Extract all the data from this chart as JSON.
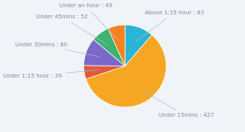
{
  "labels": [
    "Above 1:15 hour",
    "Under 15mins",
    "Under 1:15 hour",
    "Under 30mins",
    "Under 45mins",
    "Under an hour"
  ],
  "values": [
    83,
    427,
    39,
    80,
    52,
    49
  ],
  "colors": [
    "#29b5d3",
    "#f5a623",
    "#e05a3a",
    "#7b68c8",
    "#3cb371",
    "#f5821f"
  ],
  "background_color": "#f0f4f8",
  "label_fontsize": 5.0,
  "label_color": "#7a8a99",
  "line_color": "#b0bec5"
}
